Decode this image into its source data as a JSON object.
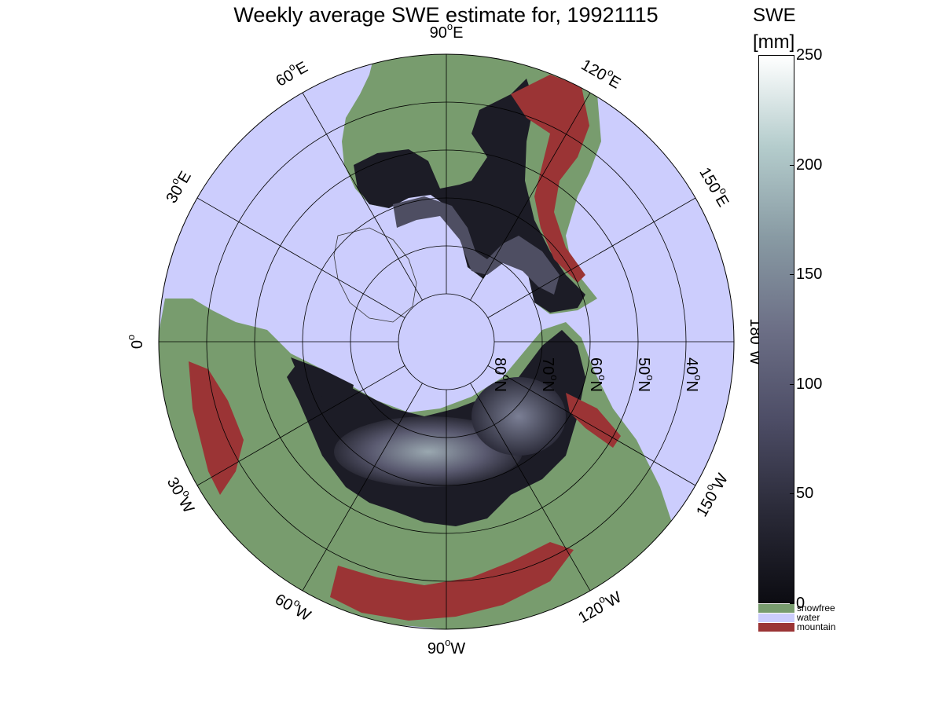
{
  "figure": {
    "title": "Weekly average SWE estimate for, 19921115",
    "colorbar": {
      "title_line1": "SWE",
      "title_line2": "[mm]",
      "min": 0,
      "max": 250,
      "ticks": [
        {
          "value": 0,
          "label": "0"
        },
        {
          "value": 50,
          "label": "50"
        },
        {
          "value": 100,
          "label": "100"
        },
        {
          "value": 150,
          "label": "150"
        },
        {
          "value": 200,
          "label": "200"
        },
        {
          "value": 250,
          "label": "250"
        }
      ],
      "gradient": [
        "#0c0c12",
        "#2a2a38",
        "#4d4d66",
        "#6c6f86",
        "#889aa3",
        "#b4cccc",
        "#ffffff"
      ],
      "categories": [
        {
          "label": "snowfree",
          "color": "#789c6e"
        },
        {
          "label": "water",
          "color": "#cccdfd"
        },
        {
          "label": "mountain",
          "color": "#9b3435"
        }
      ]
    },
    "map": {
      "projection": "north-polar",
      "southern_limit_lat": 30,
      "colors": {
        "water": "#cccdfd",
        "snowfree": "#789c6e",
        "mountain": "#9b3435",
        "snow_dark": "#1c1c26",
        "snow_mid": "#4e4e62",
        "snow_light": "#8a9aa4"
      },
      "latitude_labels": [
        {
          "lat": 80,
          "label": "80°N",
          "sup_text": "o",
          "base": "80",
          "suffix": "N"
        },
        {
          "lat": 70,
          "label": "70°N",
          "sup_text": "o",
          "base": "70",
          "suffix": "N"
        },
        {
          "lat": 60,
          "label": "60°N",
          "sup_text": "o",
          "base": "60",
          "suffix": "N"
        },
        {
          "lat": 50,
          "label": "50°N",
          "sup_text": "o",
          "base": "50",
          "suffix": "N"
        },
        {
          "lat": 40,
          "label": "40°N",
          "sup_text": "o",
          "base": "40",
          "suffix": "N"
        }
      ],
      "longitude_labels": [
        {
          "lon": -90,
          "base": "90",
          "sup_text": "o",
          "suffix": "W"
        },
        {
          "lon": -120,
          "base": "120",
          "sup_text": "o",
          "suffix": "W"
        },
        {
          "lon": -150,
          "base": "150",
          "sup_text": "o",
          "suffix": "W"
        },
        {
          "lon": 180,
          "base": "180",
          "sup_text": "o",
          "suffix": "W"
        },
        {
          "lon": 150,
          "base": "150",
          "sup_text": "o",
          "suffix": "E"
        },
        {
          "lon": 120,
          "base": "120",
          "sup_text": "o",
          "suffix": "E"
        },
        {
          "lon": 90,
          "base": "90",
          "sup_text": "o",
          "suffix": "E"
        },
        {
          "lon": 60,
          "base": "60",
          "sup_text": "o",
          "suffix": "E"
        },
        {
          "lon": 30,
          "base": "30",
          "sup_text": "o",
          "suffix": "E"
        },
        {
          "lon": 0,
          "base": "0",
          "sup_text": "o",
          "suffix": ""
        },
        {
          "lon": -30,
          "base": "30",
          "sup_text": "o",
          "suffix": "W"
        },
        {
          "lon": -60,
          "base": "60",
          "sup_text": "o",
          "suffix": "W"
        }
      ]
    }
  }
}
